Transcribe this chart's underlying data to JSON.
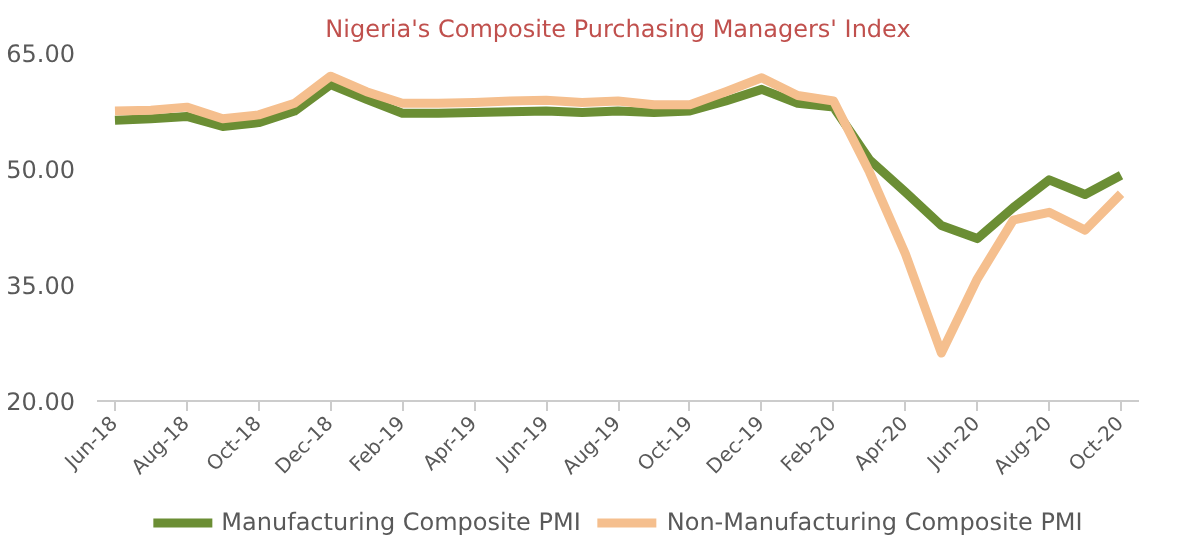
{
  "chart_data": {
    "type": "line",
    "title": "Nigeria's Composite Purchasing Managers' Index",
    "categories": [
      "Jun-18",
      null,
      "Aug-18",
      null,
      "Oct-18",
      null,
      "Dec-18",
      null,
      "Feb-19",
      null,
      "Apr-19",
      null,
      "Jun-19",
      null,
      "Aug-19",
      null,
      "Oct-19",
      null,
      "Dec-19",
      null,
      "Feb-20",
      null,
      "Apr-20",
      null,
      "Jun-20",
      null,
      "Aug-20",
      null,
      "Oct-20"
    ],
    "series": [
      {
        "name": "Manufacturing Composite PMI",
        "color": "#6b8e34",
        "values": [
          56.3,
          56.5,
          56.8,
          55.5,
          56.0,
          57.5,
          60.9,
          59.0,
          57.2,
          57.2,
          57.3,
          57.4,
          57.5,
          57.3,
          57.5,
          57.3,
          57.5,
          58.8,
          60.3,
          58.5,
          58.0,
          51.2,
          47.0,
          42.7,
          41.0,
          45.0,
          48.6,
          46.7,
          49.2
        ]
      },
      {
        "name": "Non-Manufacturing Composite PMI",
        "color": "#f5bf8e",
        "values": [
          57.5,
          57.6,
          58.0,
          56.5,
          57.0,
          58.5,
          62.0,
          60.0,
          58.5,
          58.5,
          58.6,
          58.8,
          58.9,
          58.6,
          58.8,
          58.3,
          58.3,
          60.0,
          61.8,
          59.5,
          58.8,
          49.6,
          39.0,
          26.2,
          35.8,
          43.4,
          44.4,
          42.1,
          46.8
        ]
      }
    ],
    "ylim": [
      20,
      65
    ],
    "yticks": [
      {
        "value": 20,
        "label": "20.00"
      },
      {
        "value": 35,
        "label": "35.00"
      },
      {
        "value": 50,
        "label": "50.00"
      },
      {
        "value": 65,
        "label": "65.00"
      }
    ],
    "grid": false,
    "legend": "bottom",
    "marker": "none",
    "line_style": "solid"
  }
}
